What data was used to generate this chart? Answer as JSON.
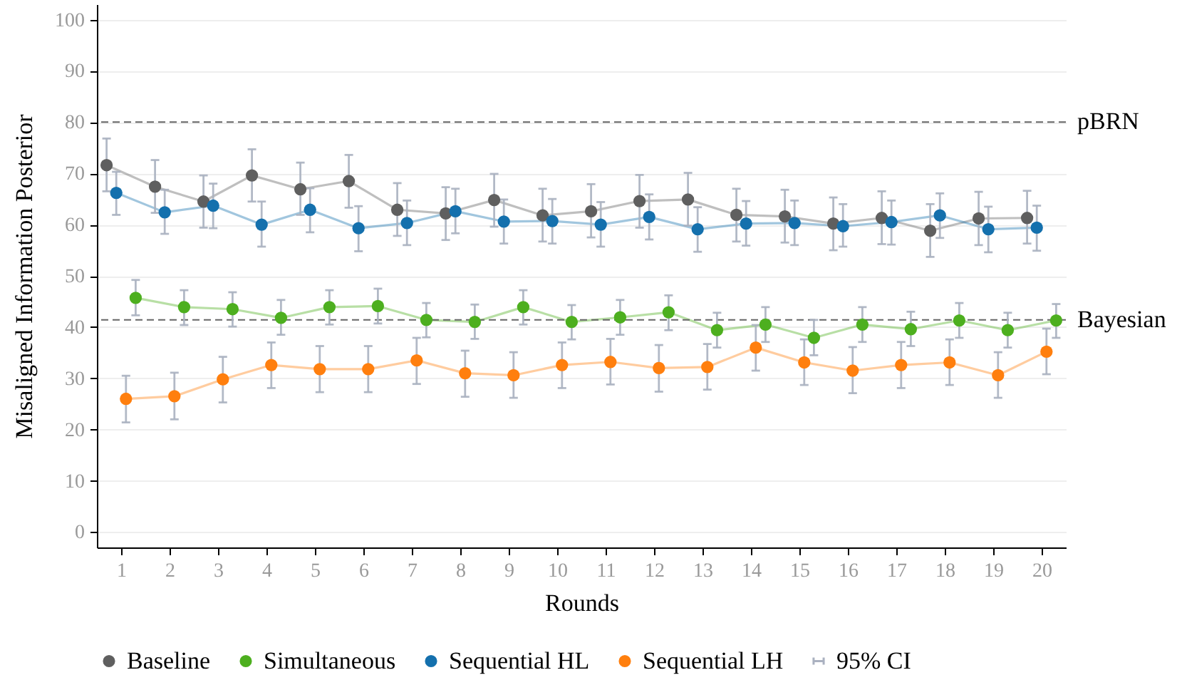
{
  "chart_data": {
    "type": "line",
    "xlabel": "Rounds",
    "ylabel": "Misaligned Information Posterior",
    "xlim": [
      0.5,
      20.5
    ],
    "xticks": [
      1,
      2,
      3,
      4,
      5,
      6,
      7,
      8,
      9,
      10,
      11,
      12,
      13,
      14,
      15,
      16,
      17,
      18,
      19,
      20
    ],
    "ylim": [
      -3,
      103
    ],
    "yticks": [
      0,
      10,
      20,
      30,
      40,
      50,
      60,
      70,
      80,
      90,
      100
    ],
    "grid": "y",
    "legend": "bottom",
    "marker": "circle",
    "ref_lines": [
      {
        "axis": "y",
        "value": 80,
        "label": "pBRN",
        "color": "#666666",
        "line_style": "dashed"
      },
      {
        "axis": "y",
        "value": 41.4,
        "label": "Bayesian",
        "color": "#666666",
        "line_style": "dashed"
      }
    ],
    "annotations": [
      "95% CI"
    ],
    "series": [
      {
        "name": "Baseline",
        "color": "#5f5f5f",
        "x": [
          0.7,
          1.7,
          2.7,
          3.7,
          4.7,
          5.7,
          6.7,
          7.7,
          8.7,
          9.7,
          10.7,
          11.7,
          12.7,
          13.7,
          14.7,
          15.7,
          16.7,
          17.7,
          18.7,
          19.7
        ],
        "values": [
          71.6,
          67.4,
          64.5,
          69.6,
          66.9,
          68.5,
          62.9,
          62.2,
          64.8,
          61.8,
          62.6,
          64.6,
          64.9,
          61.9,
          61.6,
          60.2,
          61.3,
          58.8,
          61.2,
          61.3
        ],
        "errors": [
          [
            66.5,
            76.8
          ],
          [
            62.3,
            72.6
          ],
          [
            59.4,
            69.6
          ],
          [
            64.5,
            74.7
          ],
          [
            61.9,
            72.1
          ],
          [
            63.3,
            73.6
          ],
          [
            57.8,
            68.1
          ],
          [
            57.0,
            67.3
          ],
          [
            59.6,
            69.9
          ],
          [
            56.7,
            67.0
          ],
          [
            57.5,
            67.9
          ],
          [
            59.4,
            69.7
          ],
          [
            59.8,
            70.1
          ],
          [
            56.7,
            67.0
          ],
          [
            56.5,
            66.8
          ],
          [
            55.0,
            65.3
          ],
          [
            56.2,
            66.5
          ],
          [
            53.7,
            64.0
          ],
          [
            56.0,
            66.4
          ],
          [
            56.3,
            66.6
          ]
        ]
      },
      {
        "name": "Simultaneous",
        "color": "#4daf1f",
        "x": [
          1.3,
          2.3,
          3.3,
          4.3,
          5.3,
          6.3,
          7.3,
          8.3,
          9.3,
          10.3,
          11.3,
          12.3,
          13.3,
          14.3,
          15.3,
          16.3,
          17.3,
          18.3,
          19.3,
          20.3
        ],
        "values": [
          45.7,
          43.9,
          43.5,
          41.8,
          43.9,
          44.1,
          41.4,
          41.0,
          43.9,
          41.0,
          41.9,
          42.9,
          39.4,
          40.5,
          37.9,
          40.5,
          39.6,
          41.3,
          39.4,
          41.3
        ],
        "errors": [
          [
            42.3,
            49.2
          ],
          [
            40.4,
            47.2
          ],
          [
            40.1,
            46.8
          ],
          [
            38.5,
            45.3
          ],
          [
            40.5,
            47.2
          ],
          [
            40.7,
            47.5
          ],
          [
            38.0,
            44.7
          ],
          [
            37.7,
            44.4
          ],
          [
            40.5,
            47.2
          ],
          [
            37.6,
            44.3
          ],
          [
            38.5,
            45.3
          ],
          [
            39.4,
            46.2
          ],
          [
            36.0,
            42.8
          ],
          [
            37.1,
            43.9
          ],
          [
            34.5,
            41.4
          ],
          [
            37.1,
            43.9
          ],
          [
            36.3,
            43.0
          ],
          [
            37.9,
            44.7
          ],
          [
            36.0,
            42.8
          ],
          [
            37.9,
            44.5
          ]
        ]
      },
      {
        "name": "Sequential HL",
        "color": "#1470ad",
        "x": [
          0.9,
          1.9,
          2.9,
          3.9,
          4.9,
          5.9,
          6.9,
          7.9,
          8.9,
          9.9,
          10.9,
          11.9,
          12.9,
          13.9,
          14.9,
          15.9,
          16.9,
          17.9,
          18.9,
          19.9
        ],
        "values": [
          66.2,
          62.4,
          63.7,
          60.0,
          62.9,
          59.3,
          60.3,
          62.6,
          60.6,
          60.7,
          60.0,
          61.5,
          59.1,
          60.2,
          60.3,
          59.7,
          60.5,
          61.8,
          59.1,
          59.4
        ],
        "errors": [
          [
            61.9,
            70.3
          ],
          [
            58.2,
            66.8
          ],
          [
            59.3,
            68.0
          ],
          [
            55.7,
            64.5
          ],
          [
            58.5,
            67.1
          ],
          [
            54.8,
            63.6
          ],
          [
            56.0,
            64.7
          ],
          [
            58.3,
            67.0
          ],
          [
            56.3,
            64.9
          ],
          [
            56.3,
            65.0
          ],
          [
            55.7,
            64.4
          ],
          [
            57.1,
            65.9
          ],
          [
            54.7,
            63.4
          ],
          [
            55.9,
            64.6
          ],
          [
            56.0,
            64.7
          ],
          [
            55.7,
            64.0
          ],
          [
            56.1,
            64.7
          ],
          [
            57.4,
            66.1
          ],
          [
            54.6,
            63.5
          ],
          [
            54.9,
            63.7
          ]
        ]
      },
      {
        "name": "Sequential LH",
        "color": "#ff7f0e",
        "x": [
          1.1,
          2.1,
          3.1,
          4.1,
          5.1,
          6.1,
          7.1,
          8.1,
          9.1,
          10.1,
          11.1,
          12.1,
          13.1,
          14.1,
          15.1,
          16.1,
          17.1,
          18.1,
          19.1,
          20.1
        ],
        "values": [
          26.0,
          26.5,
          29.8,
          32.6,
          31.8,
          31.8,
          33.5,
          31.0,
          30.6,
          32.6,
          33.2,
          32.0,
          32.2,
          36.0,
          33.1,
          31.5,
          32.6,
          33.1,
          30.6,
          35.2
        ],
        "errors": [
          [
            21.4,
            30.5
          ],
          [
            22.0,
            31.1
          ],
          [
            25.3,
            34.2
          ],
          [
            28.1,
            37.0
          ],
          [
            27.3,
            36.3
          ],
          [
            27.3,
            36.3
          ],
          [
            28.9,
            37.9
          ],
          [
            26.4,
            35.4
          ],
          [
            26.2,
            35.1
          ],
          [
            28.1,
            37.0
          ],
          [
            28.8,
            37.7
          ],
          [
            27.4,
            36.5
          ],
          [
            27.8,
            36.7
          ],
          [
            31.5,
            40.4
          ],
          [
            28.7,
            37.6
          ],
          [
            27.1,
            36.1
          ],
          [
            28.1,
            37.1
          ],
          [
            28.7,
            37.6
          ],
          [
            26.2,
            35.1
          ],
          [
            30.8,
            39.7
          ]
        ]
      }
    ]
  }
}
